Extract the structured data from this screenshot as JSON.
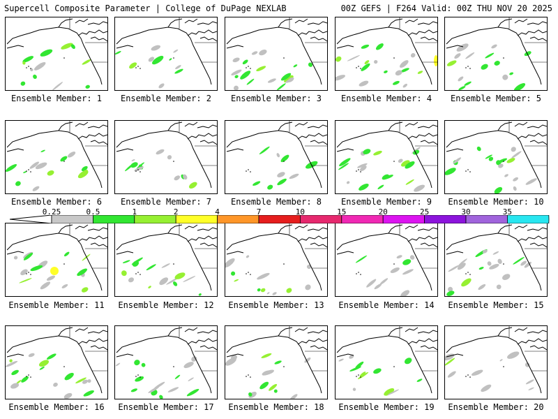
{
  "header": {
    "left": "Supercell Composite Parameter | College of DuPage NEXLAB",
    "right": "00Z GEFS | F264 Valid: 00Z THU NOV 20 2025"
  },
  "member_prefix": "Ensemble Member:",
  "members": [
    {
      "id": "1",
      "label": "Ensemble Member: 1"
    },
    {
      "id": "2",
      "label": "Ensemble Member: 2"
    },
    {
      "id": "3",
      "label": "Ensemble Member: 3"
    },
    {
      "id": "4",
      "label": "Ensemble Member: 4"
    },
    {
      "id": "5",
      "label": "Ensemble Member: 5"
    },
    {
      "id": "6",
      "label": "Ensemble Member: 6"
    },
    {
      "id": "7",
      "label": "Ensemble Member: 7"
    },
    {
      "id": "8",
      "label": "Ensemble Member: 8"
    },
    {
      "id": "9",
      "label": "Ensemble Member: 9"
    },
    {
      "id": "10",
      "label": "Ensemble Member: 10"
    },
    {
      "id": "11",
      "label": "Ensemble Member: 11"
    },
    {
      "id": "12",
      "label": "Ensemble Member: 12"
    },
    {
      "id": "13",
      "label": "Ensemble Member: 13"
    },
    {
      "id": "14",
      "label": "Ensemble Member: 14"
    },
    {
      "id": "15",
      "label": "Ensemble Member: 15"
    },
    {
      "id": "16",
      "label": "Ensemble Member: 16"
    },
    {
      "id": "17",
      "label": "Ensemble Member: 17"
    },
    {
      "id": "18",
      "label": "Ensemble Member: 18"
    },
    {
      "id": "19",
      "label": "Ensemble Member: 19"
    },
    {
      "id": "20",
      "label": "Ensemble Member: 20"
    }
  ],
  "legend": {
    "ticks": [
      "0.25",
      "0.5",
      "1",
      "2",
      "4",
      "7",
      "10",
      "15",
      "20",
      "25",
      "30",
      "35"
    ],
    "colors": [
      "#c8c8c8",
      "#32e632",
      "#96f032",
      "#ffff28",
      "#ff9628",
      "#e61e1e",
      "#e6286e",
      "#f028b4",
      "#dc14f0",
      "#8c14dc",
      "#a064dc",
      "#28e6f0"
    ],
    "under_color": "#ffffff"
  },
  "map_colors": {
    "low": "#c0c0c0",
    "mid": "#32e632",
    "high": "#96f032",
    "peak": "#ffff28"
  }
}
